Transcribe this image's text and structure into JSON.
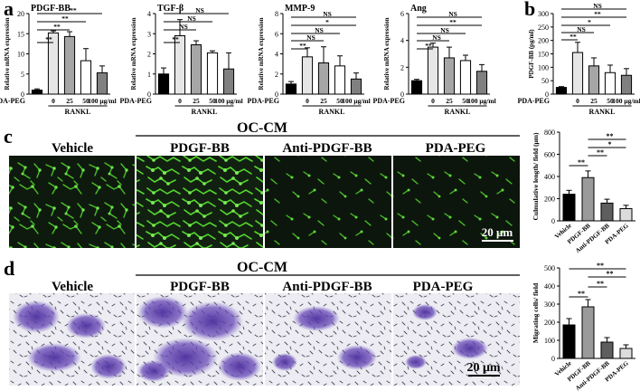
{
  "panel_letters": {
    "a": "a",
    "b": "b",
    "c": "c",
    "d": "d"
  },
  "groups": {
    "control": "PDA-PEG",
    "doses": [
      "0",
      "25",
      "50",
      "100 μg/ml"
    ],
    "rankl": "RANKL"
  },
  "bracket_labels": {
    "a": [
      "**",
      "**",
      "**",
      "**"
    ],
    "tgfb": [
      "NS",
      "NS",
      "NS",
      "**"
    ],
    "mmp9": [
      "NS",
      "*",
      "NS",
      "NS",
      "**"
    ],
    "ang": [
      "NS",
      "**",
      "NS",
      "NS",
      "**"
    ],
    "b": [
      "NS",
      "**",
      "*",
      "NS",
      "**"
    ],
    "c": [
      "**",
      "**",
      "*",
      "**"
    ],
    "d": [
      "**",
      "**",
      "**",
      "**"
    ]
  },
  "oc_cm": "OC-CM",
  "image_labels": [
    "Vehicle",
    "PDGF-BB",
    "Anti-PDGF-BB",
    "PDA-PEG"
  ],
  "scale_bar": "20 μm",
  "colors": {
    "bar_fills": [
      "#000000",
      "#e6e6e6",
      "#a6a6a6",
      "#ffffff",
      "#808080"
    ],
    "cd_fills": [
      "#000000",
      "#9a9a9a",
      "#5e5e5e",
      "#dcdcdc"
    ],
    "micrograph_bg": "#0f1a0f",
    "cell_green": "#4fd12a",
    "transwell_bg": "#ececf2",
    "cell_purple": "#5b3da6"
  },
  "chart_data": [
    {
      "panel": "a",
      "type": "bar",
      "title": "PDGF-BB",
      "ylabel": "Relative mRNA expression",
      "ylim": [
        0,
        20
      ],
      "yticks": [
        0,
        5,
        10,
        15,
        20
      ],
      "categories": [
        "PDA-PEG",
        "0",
        "25",
        "50",
        "100 μg/ml"
      ],
      "values": [
        1,
        15.2,
        14.3,
        8.3,
        5.3
      ],
      "errors": [
        0.3,
        0.5,
        1.2,
        3.0,
        1.7
      ]
    },
    {
      "panel": "a",
      "type": "bar",
      "title": "TGF-β",
      "ylabel": "Relative mRNA expression",
      "ylim": [
        0,
        4
      ],
      "yticks": [
        0,
        1,
        2,
        3,
        4
      ],
      "categories": [
        "PDA-PEG",
        "0",
        "25",
        "50",
        "100 μg/ml"
      ],
      "values": [
        1,
        2.9,
        2.45,
        2.05,
        1.25
      ],
      "errors": [
        0.3,
        0.8,
        0.2,
        0.1,
        0.8
      ]
    },
    {
      "panel": "a",
      "type": "bar",
      "title": "MMP-9",
      "ylabel": "Relative mRNA expression",
      "ylim": [
        0,
        8
      ],
      "yticks": [
        0,
        2,
        4,
        6,
        8
      ],
      "categories": [
        "PDA-PEG",
        "0",
        "25",
        "50",
        "100 μg/ml"
      ],
      "values": [
        1,
        3.7,
        3.1,
        2.8,
        1.5
      ],
      "errors": [
        0.25,
        0.9,
        1.6,
        1.0,
        0.6
      ]
    },
    {
      "panel": "a",
      "type": "bar",
      "title": "Ang",
      "ylabel": "Relative mRNA expression",
      "ylim": [
        0,
        6
      ],
      "yticks": [
        0,
        2,
        4,
        6
      ],
      "categories": [
        "PDA-PEG",
        "0",
        "25",
        "50",
        "100 μg/ml"
      ],
      "values": [
        1,
        3.5,
        2.7,
        2.5,
        1.7
      ],
      "errors": [
        0.1,
        0.3,
        0.8,
        0.4,
        0.5
      ]
    },
    {
      "panel": "b",
      "type": "bar",
      "title": "",
      "ylabel": "PDGF-BB (pg/ml)",
      "ylim": [
        0,
        300
      ],
      "yticks": [
        0,
        50,
        100,
        150,
        200,
        250,
        300
      ],
      "categories": [
        "PDA-PEG",
        "0",
        "25",
        "50",
        "100 μg/ml"
      ],
      "values": [
        25,
        155,
        105,
        80,
        70
      ],
      "errors": [
        3,
        38,
        30,
        28,
        25
      ]
    },
    {
      "panel": "c",
      "type": "bar",
      "title": "",
      "ylabel": "Culmulative length/ field (μm)",
      "ylim": [
        0,
        800
      ],
      "yticks": [
        0,
        200,
        400,
        600,
        800
      ],
      "categories": [
        "Vehicle",
        "PDGF-BB",
        "Anti-PDGF-BB",
        "PDA-PEG"
      ],
      "values": [
        240,
        390,
        160,
        110
      ],
      "errors": [
        35,
        60,
        35,
        30
      ]
    },
    {
      "panel": "d",
      "type": "bar",
      "title": "",
      "ylabel": "Migrating cells/ field",
      "ylim": [
        0,
        500
      ],
      "yticks": [
        0,
        100,
        200,
        300,
        400,
        500
      ],
      "categories": [
        "Vehicle",
        "PDGF-BB",
        "Anti-PDGF-BB",
        "PDA-PEG"
      ],
      "values": [
        185,
        285,
        90,
        55
      ],
      "errors": [
        35,
        40,
        25,
        20
      ]
    }
  ]
}
